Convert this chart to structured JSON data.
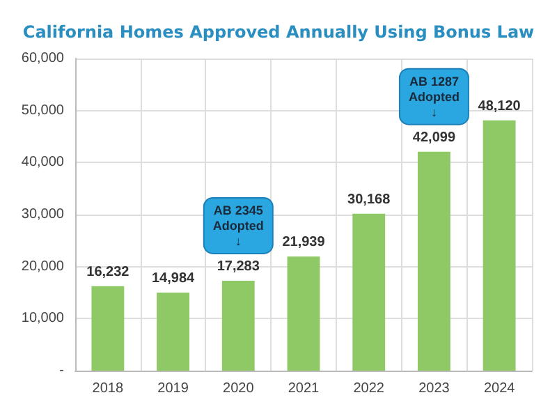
{
  "chart_data": {
    "type": "bar",
    "title": "California Homes Approved Annually Using Bonus Law",
    "categories": [
      "2018",
      "2019",
      "2020",
      "2021",
      "2022",
      "2023",
      "2024"
    ],
    "values": [
      16232,
      14984,
      17283,
      21939,
      30168,
      42099,
      48120
    ],
    "color": "#8fc965",
    "value_labels": [
      "16,232",
      "14,984",
      "17,283",
      "21,939",
      "30,168",
      "42,099",
      "48,120"
    ],
    "ylim": [
      0,
      60000
    ],
    "yticks": [
      {
        "value": 0,
        "label": "-"
      },
      {
        "value": 10000,
        "label": "10,000"
      },
      {
        "value": 20000,
        "label": "20,000"
      },
      {
        "value": 30000,
        "label": "30,000"
      },
      {
        "value": 40000,
        "label": "40,000"
      },
      {
        "value": 50000,
        "label": "50,000"
      },
      {
        "value": 60000,
        "label": "60,000"
      }
    ],
    "grid": true,
    "annotations": [
      {
        "text": "AB 2345\nAdopted\n↓",
        "x": "2020",
        "y": 17283
      },
      {
        "text": "AB 1287\nAdopted\n↓",
        "x": "2023",
        "y": 42099
      }
    ]
  }
}
